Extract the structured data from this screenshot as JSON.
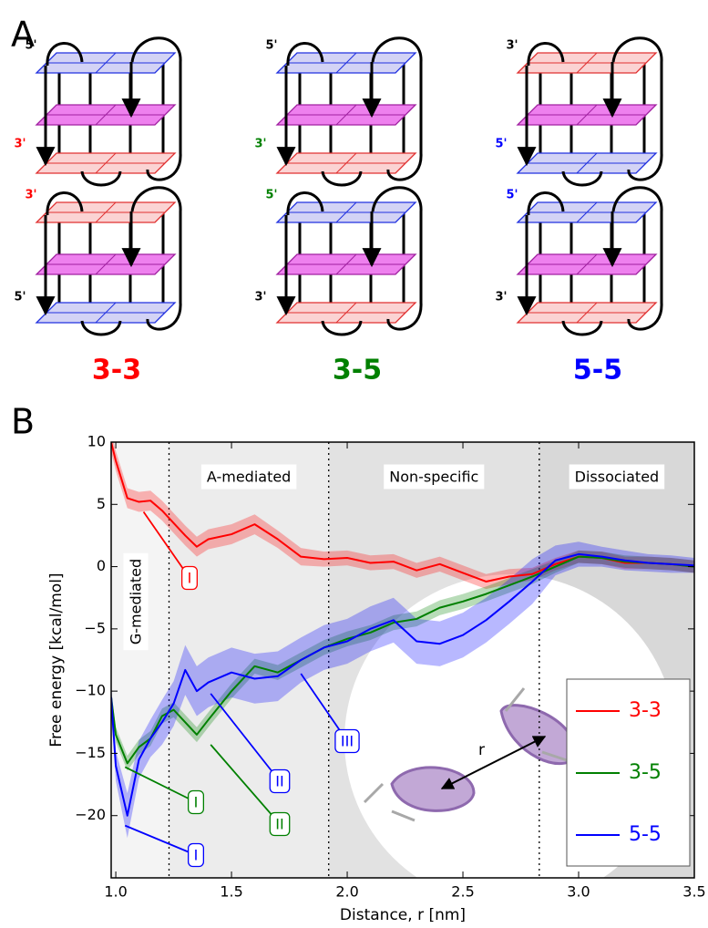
{
  "panel_a": {
    "label": "A",
    "diagrams": [
      {
        "name": "3-3",
        "color": "#ff0000",
        "labels": [
          "5'",
          "3'",
          "3'",
          "5'"
        ]
      },
      {
        "name": "3-5",
        "color": "#008000",
        "labels": [
          "5'",
          "3'",
          "5'",
          "3'"
        ]
      },
      {
        "name": "5-5",
        "color": "#0000ff",
        "labels": [
          "3'",
          "5'",
          "5'",
          "3'"
        ]
      }
    ]
  },
  "chart_data": {
    "type": "line",
    "panel_label": "B",
    "x_label": "Distance, r [nm]",
    "y_label": "Free energy [kcal/mol]",
    "xlim": [
      0.98,
      3.5
    ],
    "ylim": [
      -25,
      10
    ],
    "xticks": [
      {
        "value": 1,
        "label": "1.0"
      },
      1.5,
      {
        "value": 2,
        "label": "2.0"
      },
      2.5,
      {
        "value": 3,
        "label": "3.0"
      },
      3.5
    ],
    "yticks": [
      10,
      5,
      0,
      {
        "value": -5,
        "label": "−5"
      },
      {
        "value": -10,
        "label": "−10"
      },
      {
        "value": -15,
        "label": "−15"
      },
      {
        "value": -20,
        "label": "−20"
      }
    ],
    "dividers": [
      1.23,
      1.92,
      2.83
    ],
    "regions": [
      "G-mediated",
      "A-mediated",
      "Non-specific",
      "Dissociated"
    ],
    "inset_label": "r",
    "legend": "lower right",
    "x": [
      0.98,
      1.0,
      1.05,
      1.1,
      1.15,
      1.2,
      1.25,
      1.3,
      1.35,
      1.4,
      1.5,
      1.6,
      1.7,
      1.8,
      1.9,
      2.0,
      2.1,
      2.2,
      2.3,
      2.4,
      2.5,
      2.6,
      2.7,
      2.8,
      2.9,
      3.0,
      3.1,
      3.2,
      3.3,
      3.4,
      3.5
    ],
    "series": [
      {
        "name": "3-3",
        "color": "#ff0000",
        "values": [
          10,
          8.5,
          5.5,
          5.2,
          5.3,
          4.5,
          3.5,
          2.5,
          1.6,
          2.2,
          2.6,
          3.4,
          2.2,
          0.8,
          0.6,
          0.7,
          0.3,
          0.4,
          -0.3,
          0.2,
          -0.5,
          -1.2,
          -0.8,
          -0.6,
          0.2,
          0.8,
          0.7,
          0.3,
          0.3,
          0.2,
          0
        ],
        "errors": [
          0.8,
          0.8,
          0.8,
          0.8,
          0.8,
          0.8,
          0.8,
          0.8,
          0.8,
          0.8,
          0.8,
          0.8,
          0.7,
          0.7,
          0.6,
          0.6,
          0.6,
          0.6,
          0.6,
          0.6,
          0.6,
          0.6,
          0.6,
          0.5,
          0.5,
          0.5,
          0.5,
          0.5,
          0.5,
          0.5,
          0.5
        ]
      },
      {
        "name": "3-5",
        "color": "#008000",
        "values": [
          -10.5,
          -13.5,
          -15.8,
          -14.5,
          -13.8,
          -12,
          -11.5,
          -12.5,
          -13.5,
          -12.3,
          -10,
          -8,
          -8.5,
          -7.5,
          -6.5,
          -5.8,
          -5.3,
          -4.5,
          -4.2,
          -3.3,
          -2.8,
          -2.2,
          -1.5,
          -0.8,
          0,
          0.8,
          0.7,
          0.4,
          0.3,
          0.2,
          0
        ],
        "errors": [
          0.6,
          0.6,
          0.6,
          0.6,
          0.6,
          0.6,
          0.6,
          0.6,
          0.6,
          0.6,
          0.6,
          0.6,
          0.6,
          0.6,
          0.6,
          0.6,
          0.6,
          0.6,
          0.6,
          0.6,
          0.6,
          0.6,
          0.6,
          0.6,
          0.5,
          0.5,
          0.5,
          0.5,
          0.5,
          0.5,
          0.5
        ]
      },
      {
        "name": "5-5",
        "color": "#0000ff",
        "values": [
          -10.5,
          -16,
          -20,
          -15.5,
          -13.8,
          -12.5,
          -11,
          -8.3,
          -10,
          -9.3,
          -8.5,
          -9,
          -8.8,
          -7.5,
          -6.5,
          -6,
          -5,
          -4.3,
          -6,
          -6.2,
          -5.5,
          -4.3,
          -2.8,
          -1.2,
          0.5,
          1,
          0.8,
          0.5,
          0.3,
          0.2,
          0.1
        ],
        "errors": [
          1.2,
          1.2,
          1.8,
          1.5,
          1.5,
          1.8,
          1.8,
          2,
          2,
          2,
          2,
          2,
          2,
          1.8,
          1.8,
          1.8,
          1.8,
          1.8,
          1.8,
          1.8,
          1.8,
          1.8,
          1.8,
          1.8,
          1.2,
          1,
          0.8,
          0.8,
          0.7,
          0.7,
          0.6
        ]
      }
    ],
    "annotations": [
      {
        "text": "I",
        "series": 0,
        "x": 1.12,
        "y": 4.4
      },
      {
        "text": "I",
        "series": 1,
        "x": 1.04,
        "y": -16.1
      },
      {
        "text": "I",
        "series": 2,
        "x": 1.04,
        "y": -20.8
      },
      {
        "text": "II",
        "series": 2,
        "x": 1.41,
        "y": -10.2
      },
      {
        "text": "II",
        "series": 1,
        "x": 1.41,
        "y": -14.3
      },
      {
        "text": "III",
        "series": 2,
        "x": 1.8,
        "y": -8.6
      }
    ]
  }
}
